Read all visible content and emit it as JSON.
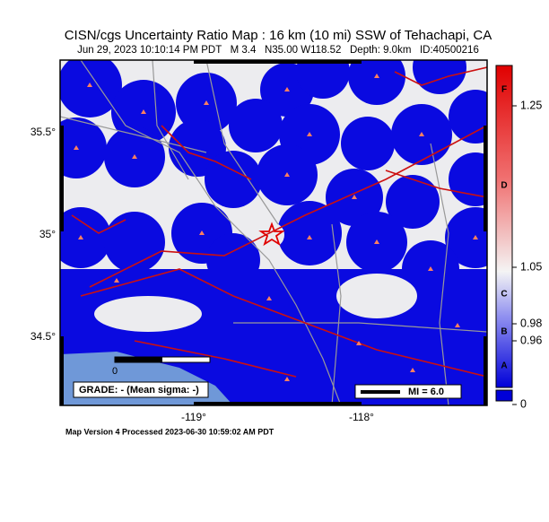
{
  "header": {
    "title": "CISN/cgs Uncertainty Ratio Map : 16 km (10 mi) SSW of Tehachapi, CA",
    "subtitle": "Jun 29, 2023 10:10:14 PM PDT   M 3.4   N35.00 W118.52   Depth: 9.0km   ID:40500216"
  },
  "map": {
    "lat_labels": [
      "35.5°",
      "35°",
      "34.5°"
    ],
    "lon_labels": [
      "-119°",
      "-118°"
    ],
    "grade": "GRADE: - (Mean sigma: -)",
    "scale_label": "MI = 6.0",
    "scale_zero": "0"
  },
  "colorbar": {
    "grades": [
      "F",
      "D",
      "C",
      "B",
      "A"
    ],
    "values": [
      "1.25",
      "1.05",
      "0.98",
      "0.96",
      "0"
    ]
  },
  "footer": "Map Version 4 Processed 2023-06-30 10:59:02 AM PDT"
}
